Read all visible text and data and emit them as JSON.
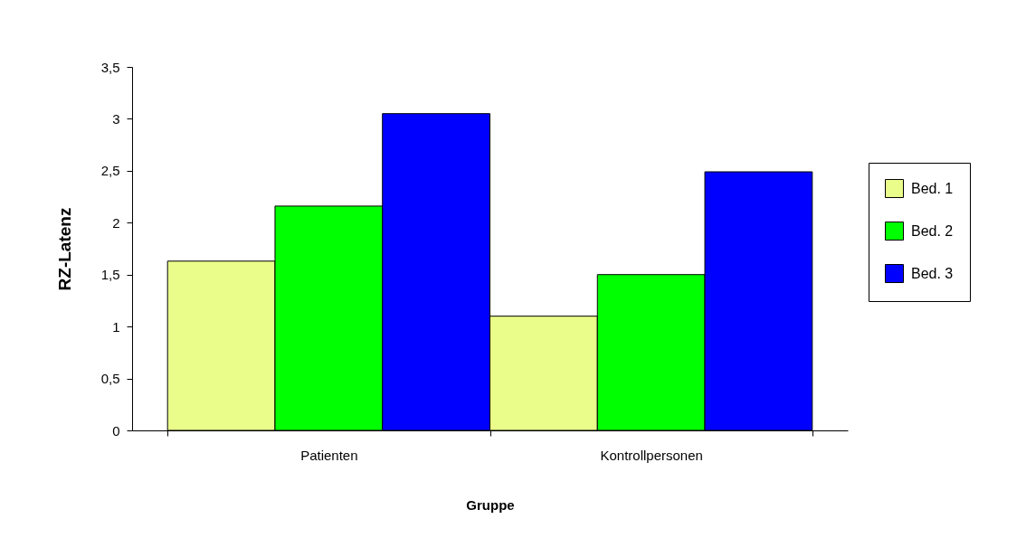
{
  "chart_data": {
    "type": "bar",
    "xlabel": "Gruppe",
    "ylabel": "RZ-Latenz",
    "categories": [
      "Patienten",
      "Kontrollpersonen"
    ],
    "series": [
      {
        "name": "Bed. 1",
        "color": "#eafd8a",
        "values": [
          1.63,
          1.1
        ]
      },
      {
        "name": "Bed. 2",
        "color": "#00ff00",
        "values": [
          2.16,
          1.5
        ]
      },
      {
        "name": "Bed. 3",
        "color": "#0000ff",
        "values": [
          3.05,
          2.49
        ]
      }
    ],
    "ylim": [
      0,
      3.5
    ],
    "yticks": [
      0,
      {
        "value": 0.5,
        "label": "0,5"
      },
      1,
      {
        "value": 1.5,
        "label": "1,5"
      },
      2,
      {
        "value": 2.5,
        "label": "2,5"
      },
      3,
      {
        "value": 3.5,
        "label": "3,5"
      }
    ],
    "grid": false,
    "legend": "right"
  }
}
